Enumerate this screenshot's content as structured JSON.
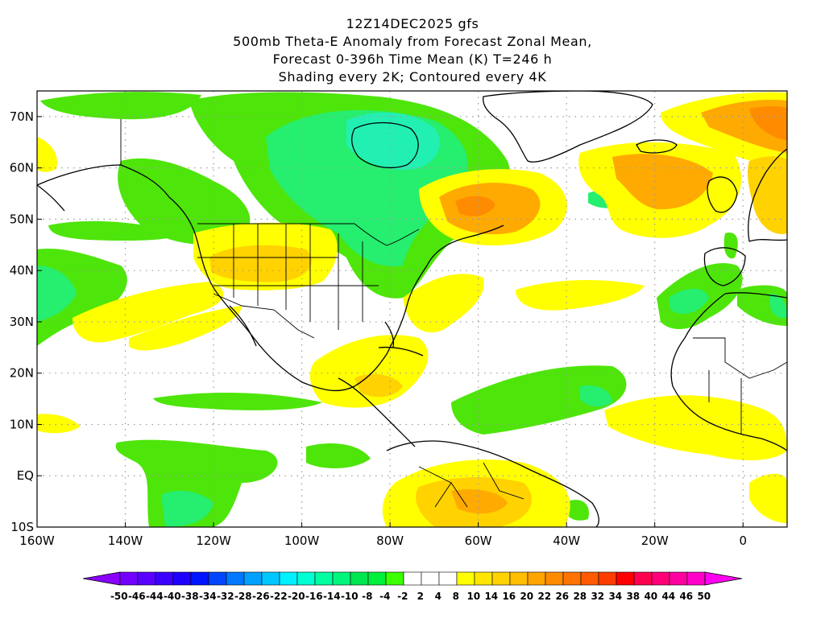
{
  "title": {
    "lines": [
      "12Z14DEC2025 gfs",
      "500mb Theta-E Anomaly from Forecast Zonal Mean,",
      "Forecast 0-396h Time Mean (K) T=246 h",
      "Shading every 2K; Contoured every 4K"
    ]
  },
  "map": {
    "lat_labels": [
      "70N",
      "60N",
      "50N",
      "40N",
      "30N",
      "20N",
      "10N",
      "EQ",
      "10S"
    ],
    "lat_values": [
      70,
      60,
      50,
      40,
      30,
      20,
      10,
      0,
      -10
    ],
    "lon_labels": [
      "160W",
      "140W",
      "120W",
      "100W",
      "80W",
      "60W",
      "40W",
      "20W",
      "0"
    ],
    "lon_values": [
      -160,
      -140,
      -120,
      -100,
      -80,
      -60,
      -40,
      -20,
      0
    ],
    "lat_range": [
      -10,
      75
    ],
    "lon_range": [
      -160,
      10
    ]
  },
  "colorbar": {
    "labels": [
      "-50",
      "-46",
      "-44",
      "-40",
      "-38",
      "-34",
      "-32",
      "-28",
      "-26",
      "-22",
      "-20",
      "-16",
      "-14",
      "-10",
      "-8",
      "-4",
      "-2",
      "2",
      "4",
      "8",
      "10",
      "14",
      "16",
      "20",
      "22",
      "26",
      "28",
      "32",
      "34",
      "38",
      "40",
      "44",
      "46",
      "50"
    ],
    "colors": [
      "#8a00ff",
      "#7300ff",
      "#5a00ff",
      "#3c00ff",
      "#1e00ff",
      "#0014ff",
      "#0046ff",
      "#0078ff",
      "#00a0ff",
      "#00c8ff",
      "#00f0ff",
      "#00ffd2",
      "#00ffa0",
      "#00f57d",
      "#00e650",
      "#00f03c",
      "#3cff00",
      "#ffffff",
      "#ffffff",
      "#ffffff",
      "#ffff00",
      "#ffe600",
      "#ffd200",
      "#ffbe00",
      "#ffa500",
      "#ff8c00",
      "#ff7300",
      "#ff5a00",
      "#ff3c00",
      "#ff0000",
      "#ff0050",
      "#ff0078",
      "#ff00a0",
      "#ff00c8",
      "#ff00f0"
    ]
  },
  "field": {
    "colors": {
      "g1": "#4ee50a",
      "g2": "#26ee6e",
      "g3": "#22f0b2",
      "y1": "#ffff00",
      "y2": "#ffd200",
      "o1": "#ffaa00",
      "o2": "#ff8c00"
    }
  }
}
